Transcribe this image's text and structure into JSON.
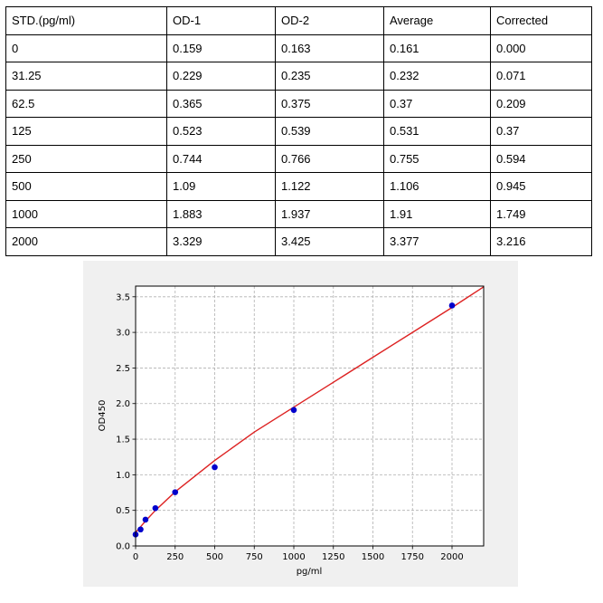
{
  "table": {
    "headers": [
      "STD.(pg/ml)",
      "OD-1",
      "OD-2",
      "Average",
      "Corrected"
    ],
    "rows": [
      [
        "0",
        "0.159",
        "0.163",
        "0.161",
        "0.000"
      ],
      [
        "31.25",
        "0.229",
        "0.235",
        "0.232",
        "0.071"
      ],
      [
        "62.5",
        "0.365",
        "0.375",
        "0.37",
        "0.209"
      ],
      [
        "125",
        "0.523",
        "0.539",
        "0.531",
        "0.37"
      ],
      [
        "250",
        "0.744",
        "0.766",
        "0.755",
        "0.594"
      ],
      [
        "500",
        "1.09",
        "1.122",
        "1.106",
        "0.945"
      ],
      [
        "1000",
        "1.883",
        "1.937",
        "1.91",
        "1.749"
      ],
      [
        "2000",
        "3.329",
        "3.425",
        "3.377",
        "3.216"
      ]
    ]
  },
  "chart_data": {
    "type": "scatter",
    "title": "",
    "xlabel": "pg/ml",
    "ylabel": "OD450",
    "xlim": [
      0,
      2200
    ],
    "ylim": [
      0,
      3.65
    ],
    "xticks": [
      "0",
      "250",
      "500",
      "750",
      "1000",
      "1250",
      "1500",
      "1750",
      "2000"
    ],
    "yticks": [
      "0.0",
      "0.5",
      "1.0",
      "1.5",
      "2.0",
      "2.5",
      "3.0",
      "3.5"
    ],
    "grid": true,
    "legend": "none",
    "series": [
      {
        "kind": "points",
        "x": [
          0,
          31.25,
          62.5,
          125,
          250,
          500,
          1000,
          2000
        ],
        "y": [
          0.161,
          0.232,
          0.37,
          0.531,
          0.755,
          1.106,
          1.91,
          3.377
        ],
        "color": "#0000cc"
      },
      {
        "kind": "fit-curve",
        "x": [
          0,
          31.25,
          62.5,
          125,
          250,
          500,
          750,
          1000,
          1250,
          1500,
          1750,
          2000,
          2200
        ],
        "y": [
          0.19,
          0.27,
          0.35,
          0.5,
          0.76,
          1.2,
          1.6,
          1.95,
          2.3,
          2.65,
          3.0,
          3.35,
          3.64
        ],
        "color": "#dd2222"
      }
    ]
  }
}
